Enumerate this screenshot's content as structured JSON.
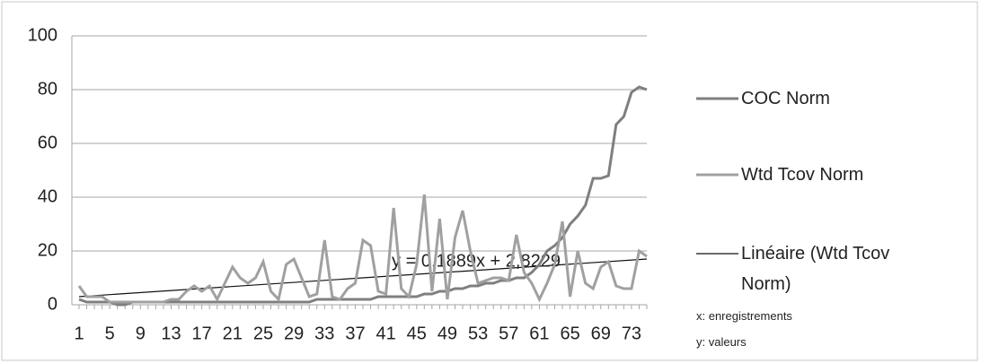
{
  "chart_data": {
    "type": "line",
    "categories": [
      1,
      null,
      null,
      null,
      5,
      null,
      null,
      null,
      9,
      null,
      null,
      null,
      13,
      null,
      null,
      null,
      17,
      null,
      null,
      null,
      21,
      null,
      null,
      null,
      25,
      null,
      null,
      null,
      29,
      null,
      null,
      null,
      33,
      null,
      null,
      null,
      37,
      null,
      null,
      null,
      41,
      null,
      null,
      null,
      45,
      null,
      null,
      null,
      49,
      null,
      null,
      null,
      53,
      null,
      null,
      null,
      57,
      null,
      null,
      null,
      61,
      null,
      null,
      null,
      65,
      null,
      null,
      null,
      69,
      null,
      null,
      null,
      73,
      null,
      null
    ],
    "series": [
      {
        "name": "COC Norm",
        "color": "#7f7f7f",
        "values": [
          2,
          1,
          1,
          1,
          1,
          0,
          0,
          1,
          1,
          1,
          1,
          1,
          1,
          1,
          1,
          1,
          1,
          1,
          1,
          1,
          1,
          1,
          1,
          1,
          1,
          1,
          1,
          1,
          1,
          1,
          1,
          2,
          2,
          2,
          2,
          2,
          2,
          2,
          2,
          3,
          3,
          3,
          3,
          3,
          3,
          4,
          4,
          5,
          5,
          6,
          6,
          7,
          7,
          8,
          8,
          9,
          9,
          10,
          10,
          12,
          15,
          20,
          22,
          25,
          30,
          33,
          37,
          47,
          47,
          48,
          67,
          70,
          79,
          81,
          80
        ]
      },
      {
        "name": "Wtd Tcov Norm",
        "color": "#a0a0a0",
        "values": [
          7,
          3,
          3,
          3,
          1,
          1,
          1,
          1,
          1,
          1,
          1,
          1,
          2,
          2,
          5,
          7,
          5,
          7,
          2,
          8,
          14,
          10,
          8,
          10,
          16,
          5,
          2,
          15,
          17,
          10,
          3,
          4,
          24,
          3,
          2,
          6,
          8,
          24,
          22,
          5,
          4,
          36,
          6,
          3,
          15,
          41,
          5,
          32,
          2,
          25,
          35,
          20,
          8,
          9,
          10,
          10,
          9,
          26,
          12,
          8,
          2,
          8,
          15,
          31,
          3,
          20,
          8,
          6,
          14,
          16,
          7,
          6,
          6,
          20,
          18
        ]
      }
    ],
    "trendline": {
      "name": "Linéaire (Wtd Tcov Norm)",
      "color": "#111111",
      "slope": 0.1889,
      "intercept": 2.8229,
      "label": "y = 0,1889x + 2,8229"
    },
    "notes": [
      "x: enregistrements",
      "y: valeurs"
    ],
    "ylim": [
      0,
      100
    ],
    "yticks": [
      0,
      20,
      40,
      60,
      80,
      100
    ],
    "grid": true
  }
}
